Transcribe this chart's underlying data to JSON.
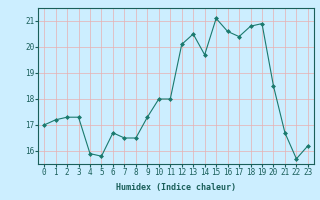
{
  "x": [
    0,
    1,
    2,
    3,
    4,
    5,
    6,
    7,
    8,
    9,
    10,
    11,
    12,
    13,
    14,
    15,
    16,
    17,
    18,
    19,
    20,
    21,
    22,
    23
  ],
  "y": [
    17.0,
    17.2,
    17.3,
    17.3,
    15.9,
    15.8,
    16.7,
    16.5,
    16.5,
    17.3,
    18.0,
    18.0,
    20.1,
    20.5,
    19.7,
    21.1,
    20.6,
    20.4,
    20.8,
    20.9,
    18.5,
    16.7,
    15.7,
    16.2
  ],
  "line_color": "#1a7a6e",
  "marker": "D",
  "marker_size": 2.0,
  "bg_color": "#cceeff",
  "grid_color": "#e8b0b0",
  "xlabel": "Humidex (Indice chaleur)",
  "ylim": [
    15.5,
    21.5
  ],
  "xlim": [
    -0.5,
    23.5
  ],
  "yticks": [
    16,
    17,
    18,
    19,
    20,
    21
  ],
  "xticks": [
    0,
    1,
    2,
    3,
    4,
    5,
    6,
    7,
    8,
    9,
    10,
    11,
    12,
    13,
    14,
    15,
    16,
    17,
    18,
    19,
    20,
    21,
    22,
    23
  ],
  "font_color": "#1a5f5a",
  "xlabel_fontsize": 6.0,
  "tick_fontsize": 5.5
}
